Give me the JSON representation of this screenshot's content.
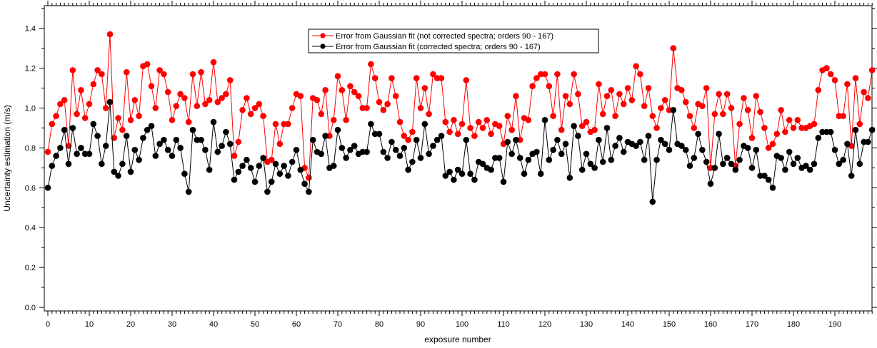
{
  "chart_data": {
    "type": "scatter",
    "title": "",
    "xlabel": "exposure number",
    "ylabel": "Uncertainty estimation (m/s)",
    "xlim": [
      -1,
      199
    ],
    "ylim": [
      -0.02,
      1.52
    ],
    "x_ticks": [
      0,
      10,
      20,
      30,
      40,
      50,
      60,
      70,
      80,
      90,
      100,
      110,
      120,
      130,
      140,
      150,
      160,
      170,
      180,
      190
    ],
    "y_ticks": [
      0.0,
      0.2,
      0.4,
      0.6,
      0.8,
      1.0,
      1.2,
      1.4
    ],
    "y_tick_labels": [
      "0.0",
      "0.2",
      "0.4",
      "0.6",
      "0.8",
      "1.0",
      "1.2",
      "1.4"
    ],
    "grid": false,
    "legend_position": "top-center",
    "series": [
      {
        "name": "Error from Gaussian fit (not corrected spectra; orders 90 - 167)",
        "color": "#ff0000",
        "x_start": 0,
        "values": [
          0.78,
          0.92,
          0.96,
          1.02,
          1.04,
          0.81,
          1.19,
          0.97,
          1.09,
          0.95,
          1.02,
          1.12,
          1.19,
          1.17,
          1.0,
          1.37,
          0.85,
          0.95,
          0.89,
          1.18,
          0.94,
          1.04,
          0.96,
          1.21,
          1.22,
          1.11,
          1.0,
          1.19,
          1.17,
          1.08,
          0.94,
          1.01,
          1.07,
          1.05,
          0.93,
          1.17,
          1.01,
          1.18,
          1.02,
          1.04,
          1.23,
          1.03,
          1.05,
          1.07,
          1.14,
          0.76,
          0.83,
          0.99,
          1.05,
          0.97,
          1.0,
          1.02,
          0.96,
          0.73,
          0.74,
          0.92,
          0.82,
          0.92,
          0.92,
          1.0,
          1.07,
          1.06,
          0.7,
          0.65,
          1.05,
          1.04,
          0.97,
          1.09,
          0.86,
          0.94,
          1.16,
          1.09,
          0.94,
          1.11,
          1.08,
          1.06,
          1.0,
          1.0,
          1.22,
          1.15,
          1.03,
          0.99,
          1.02,
          1.15,
          1.06,
          0.93,
          0.86,
          0.84,
          0.88,
          1.15,
          1.0,
          1.1,
          0.97,
          1.17,
          1.15,
          1.15,
          0.93,
          0.88,
          0.94,
          0.87,
          0.92,
          1.14,
          0.9,
          0.86,
          0.93,
          0.9,
          0.94,
          0.87,
          0.92,
          0.91,
          0.82,
          0.96,
          0.89,
          1.06,
          0.84,
          0.95,
          0.94,
          1.11,
          1.15,
          1.17,
          1.17,
          1.11,
          0.96,
          1.17,
          0.89,
          1.06,
          1.02,
          1.17,
          1.07,
          0.91,
          0.93,
          0.88,
          0.89,
          1.12,
          0.97,
          1.06,
          1.09,
          0.96,
          1.07,
          1.02,
          1.1,
          1.04,
          1.21,
          1.17,
          1.01,
          1.1,
          0.96,
          0.9,
          1.0,
          1.04,
          0.99,
          1.3,
          1.1,
          1.09,
          1.03,
          0.96,
          0.9,
          1.02,
          1.01,
          1.1,
          0.7,
          0.97,
          1.07,
          0.97,
          1.07,
          1.0,
          0.71,
          0.92,
          1.05,
          0.99,
          0.85,
          1.06,
          0.98,
          0.9,
          0.8,
          0.82,
          0.87,
          0.99,
          0.88,
          0.94,
          0.9,
          0.94,
          0.9,
          0.9,
          0.91,
          0.92,
          1.09,
          1.19,
          1.2,
          1.17,
          1.14,
          0.96,
          0.96,
          1.12,
          0.81,
          1.15,
          0.92,
          1.08,
          1.05,
          1.19
        ]
      },
      {
        "name": "Error from Gaussian fit (corrected spectra; orders 90 - 167)",
        "color": "#000000",
        "x_start": 0,
        "values": [
          0.6,
          0.71,
          0.76,
          0.8,
          0.89,
          0.72,
          0.9,
          0.77,
          0.8,
          0.77,
          0.77,
          0.92,
          0.86,
          0.72,
          0.81,
          1.03,
          0.68,
          0.66,
          0.72,
          0.86,
          0.68,
          0.79,
          0.74,
          0.85,
          0.89,
          0.91,
          0.76,
          0.82,
          0.84,
          0.79,
          0.76,
          0.84,
          0.8,
          0.67,
          0.58,
          0.89,
          0.84,
          0.84,
          0.79,
          0.69,
          0.93,
          0.78,
          0.81,
          0.88,
          0.82,
          0.64,
          0.68,
          0.71,
          0.74,
          0.7,
          0.63,
          0.71,
          0.75,
          0.58,
          0.63,
          0.72,
          0.67,
          0.71,
          0.66,
          0.73,
          0.79,
          0.69,
          0.62,
          0.58,
          0.84,
          0.78,
          0.77,
          0.86,
          0.7,
          0.71,
          0.89,
          0.8,
          0.75,
          0.79,
          0.81,
          0.77,
          0.78,
          0.78,
          0.92,
          0.87,
          0.87,
          0.78,
          0.75,
          0.83,
          0.79,
          0.76,
          0.8,
          0.69,
          0.73,
          0.84,
          0.75,
          0.92,
          0.77,
          0.81,
          0.84,
          0.86,
          0.66,
          0.68,
          0.64,
          0.69,
          0.67,
          0.84,
          0.67,
          0.64,
          0.73,
          0.72,
          0.7,
          0.69,
          0.75,
          0.75,
          0.63,
          0.83,
          0.77,
          0.84,
          0.75,
          0.67,
          0.74,
          0.77,
          0.78,
          0.67,
          0.94,
          0.74,
          0.79,
          0.84,
          0.77,
          0.82,
          0.65,
          0.91,
          0.86,
          0.69,
          0.77,
          0.72,
          0.7,
          0.84,
          0.73,
          0.9,
          0.74,
          0.81,
          0.85,
          0.78,
          0.83,
          0.82,
          0.81,
          0.83,
          0.74,
          0.86,
          0.53,
          0.74,
          0.84,
          0.82,
          0.79,
          0.99,
          0.82,
          0.81,
          0.79,
          0.71,
          0.75,
          0.87,
          0.79,
          0.73,
          0.62,
          0.7,
          0.87,
          0.72,
          0.75,
          0.72,
          0.69,
          0.74,
          0.81,
          0.8,
          0.7,
          0.79,
          0.66,
          0.66,
          0.64,
          0.6,
          0.76,
          0.75,
          0.69,
          0.78,
          0.72,
          0.75,
          0.7,
          0.71,
          0.69,
          0.72,
          0.85,
          0.88,
          0.88,
          0.88,
          0.79,
          0.72,
          0.74,
          0.82,
          0.66,
          0.89,
          0.72,
          0.83,
          0.83,
          0.89
        ]
      }
    ]
  }
}
